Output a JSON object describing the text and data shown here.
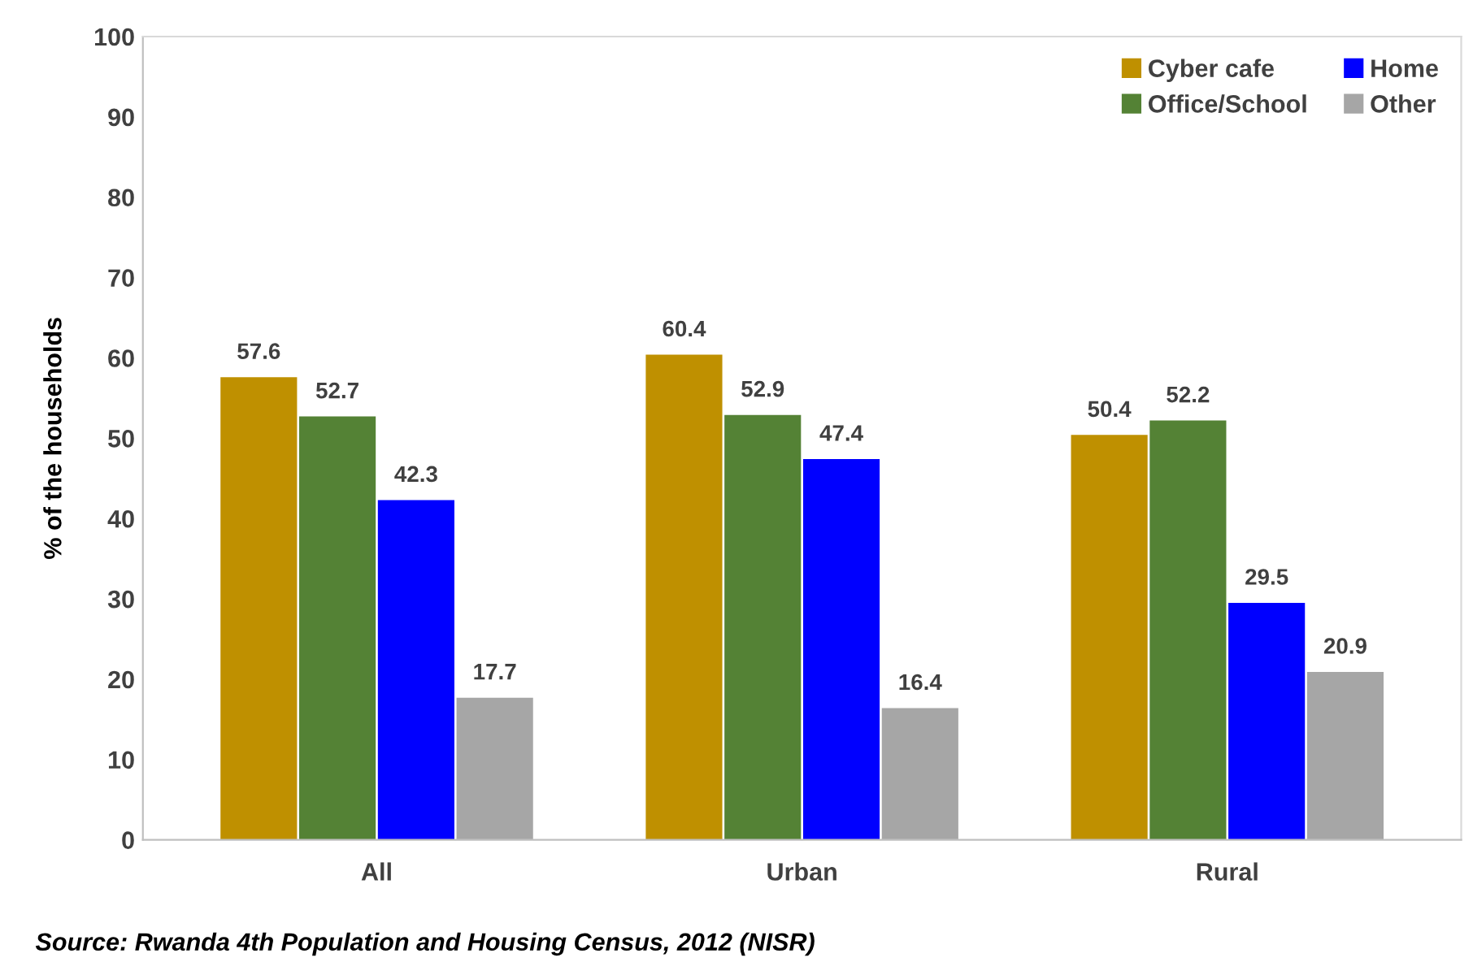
{
  "chart_data": {
    "type": "bar",
    "ylabel": "% of the households",
    "categories": [
      "All",
      "Urban",
      "Rural"
    ],
    "series": [
      {
        "name": "Cyber cafe",
        "color": "#bf9000",
        "values": [
          57.6,
          60.4,
          50.4
        ]
      },
      {
        "name": "Office/School",
        "color": "#548235",
        "values": [
          52.7,
          52.9,
          52.2
        ]
      },
      {
        "name": "Home",
        "color": "#0000ff",
        "values": [
          42.3,
          47.4,
          29.5
        ]
      },
      {
        "name": "Other",
        "color": "#a6a6a6",
        "values": [
          17.7,
          16.4,
          20.9
        ]
      }
    ],
    "ylim": [
      0,
      100
    ],
    "yticks": [
      0,
      10,
      20,
      30,
      40,
      50,
      60,
      70,
      80,
      90,
      100
    ],
    "grid": false,
    "legend": "top right",
    "data_labels": true,
    "annotations": [
      "Source: Rwanda 4th Population and Housing Census, 2012 (NISR)"
    ]
  }
}
